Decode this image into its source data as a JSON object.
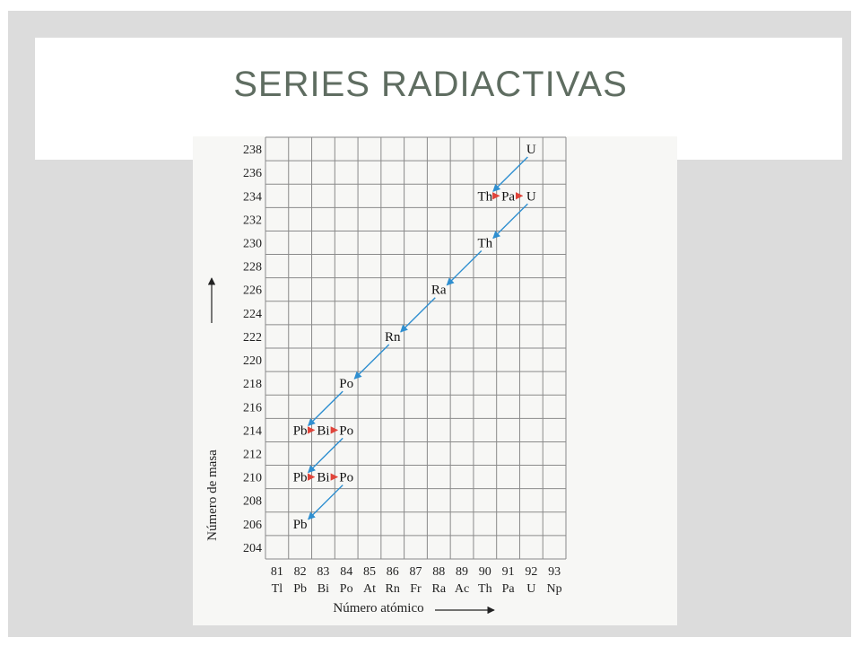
{
  "slide": {
    "title": "SERIES RADIACTIVAS"
  },
  "chart_data": {
    "type": "scatter",
    "xlabel": "Número atómico",
    "ylabel": "Número de masa",
    "x_ticks": [
      {
        "z": 81,
        "sym": "Tl"
      },
      {
        "z": 82,
        "sym": "Pb"
      },
      {
        "z": 83,
        "sym": "Bi"
      },
      {
        "z": 84,
        "sym": "Po"
      },
      {
        "z": 85,
        "sym": "At"
      },
      {
        "z": 86,
        "sym": "Rn"
      },
      {
        "z": 87,
        "sym": "Fr"
      },
      {
        "z": 88,
        "sym": "Ra"
      },
      {
        "z": 89,
        "sym": "Ac"
      },
      {
        "z": 90,
        "sym": "Th"
      },
      {
        "z": 91,
        "sym": "Pa"
      },
      {
        "z": 92,
        "sym": "U"
      },
      {
        "z": 93,
        "sym": "Np"
      }
    ],
    "y_ticks": [
      204,
      206,
      208,
      210,
      212,
      214,
      216,
      218,
      220,
      222,
      224,
      226,
      228,
      230,
      232,
      234,
      236,
      238
    ],
    "xlim": [
      80.5,
      93.5
    ],
    "ylim": [
      203,
      239
    ],
    "grid": true,
    "nuclides": [
      {
        "label": "U",
        "z": 92,
        "a": 238
      },
      {
        "label": "Th",
        "z": 90,
        "a": 234
      },
      {
        "label": "Pa",
        "z": 91,
        "a": 234
      },
      {
        "label": "U",
        "z": 92,
        "a": 234
      },
      {
        "label": "Th",
        "z": 90,
        "a": 230
      },
      {
        "label": "Ra",
        "z": 88,
        "a": 226
      },
      {
        "label": "Rn",
        "z": 86,
        "a": 222
      },
      {
        "label": "Po",
        "z": 84,
        "a": 218
      },
      {
        "label": "Pb",
        "z": 82,
        "a": 214
      },
      {
        "label": "Bi",
        "z": 83,
        "a": 214
      },
      {
        "label": "Po",
        "z": 84,
        "a": 214
      },
      {
        "label": "Pb",
        "z": 82,
        "a": 210
      },
      {
        "label": "Bi",
        "z": 83,
        "a": 210
      },
      {
        "label": "Po",
        "z": 84,
        "a": 210
      },
      {
        "label": "Pb",
        "z": 82,
        "a": 206
      }
    ],
    "decays": [
      {
        "type": "alpha",
        "from": [
          92,
          238
        ],
        "to": [
          90,
          234
        ]
      },
      {
        "type": "beta",
        "from": [
          90,
          234
        ],
        "to": [
          91,
          234
        ]
      },
      {
        "type": "beta",
        "from": [
          91,
          234
        ],
        "to": [
          92,
          234
        ]
      },
      {
        "type": "alpha",
        "from": [
          92,
          234
        ],
        "to": [
          90,
          230
        ]
      },
      {
        "type": "alpha",
        "from": [
          90,
          230
        ],
        "to": [
          88,
          226
        ]
      },
      {
        "type": "alpha",
        "from": [
          88,
          226
        ],
        "to": [
          86,
          222
        ]
      },
      {
        "type": "alpha",
        "from": [
          86,
          222
        ],
        "to": [
          84,
          218
        ]
      },
      {
        "type": "alpha",
        "from": [
          84,
          218
        ],
        "to": [
          82,
          214
        ]
      },
      {
        "type": "beta",
        "from": [
          82,
          214
        ],
        "to": [
          83,
          214
        ]
      },
      {
        "type": "beta",
        "from": [
          83,
          214
        ],
        "to": [
          84,
          214
        ]
      },
      {
        "type": "alpha",
        "from": [
          84,
          214
        ],
        "to": [
          82,
          210
        ]
      },
      {
        "type": "beta",
        "from": [
          82,
          210
        ],
        "to": [
          83,
          210
        ]
      },
      {
        "type": "beta",
        "from": [
          83,
          210
        ],
        "to": [
          84,
          210
        ]
      },
      {
        "type": "alpha",
        "from": [
          84,
          210
        ],
        "to": [
          82,
          206
        ]
      }
    ],
    "colors": {
      "alpha": "#2f8fd0",
      "beta": "#e0443a",
      "grid": "#8a8a8a",
      "text": "#222222"
    }
  }
}
